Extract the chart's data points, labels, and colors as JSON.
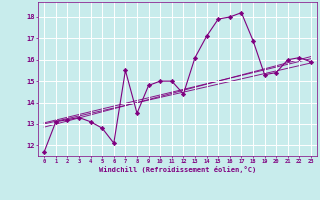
{
  "title": "",
  "xlabel": "Windchill (Refroidissement éolien,°C)",
  "bg_color": "#c8ecec",
  "grid_color": "#b0d8d8",
  "line_color": "#800080",
  "xlim": [
    -0.5,
    23.5
  ],
  "ylim": [
    11.5,
    18.7
  ],
  "yticks": [
    12,
    13,
    14,
    15,
    16,
    17,
    18
  ],
  "xticks": [
    0,
    1,
    2,
    3,
    4,
    5,
    6,
    7,
    8,
    9,
    10,
    11,
    12,
    13,
    14,
    15,
    16,
    17,
    18,
    19,
    20,
    21,
    22,
    23
  ],
  "main_x": [
    0,
    1,
    2,
    3,
    4,
    5,
    6,
    7,
    8,
    9,
    10,
    11,
    12,
    13,
    14,
    15,
    16,
    17,
    18,
    19,
    20,
    21,
    22,
    23
  ],
  "main_y": [
    11.7,
    13.1,
    13.2,
    13.3,
    13.1,
    12.8,
    12.1,
    15.5,
    13.5,
    14.8,
    15.0,
    15.0,
    14.4,
    16.1,
    17.1,
    17.9,
    18.0,
    18.2,
    16.9,
    15.3,
    15.4,
    16.0,
    16.1,
    15.9
  ],
  "trend_lines": [
    {
      "x": [
        0,
        23
      ],
      "y": [
        13.0,
        15.85
      ]
    },
    {
      "x": [
        0,
        23
      ],
      "y": [
        13.05,
        16.05
      ]
    },
    {
      "x": [
        0,
        23
      ],
      "y": [
        12.85,
        16.15
      ]
    }
  ]
}
